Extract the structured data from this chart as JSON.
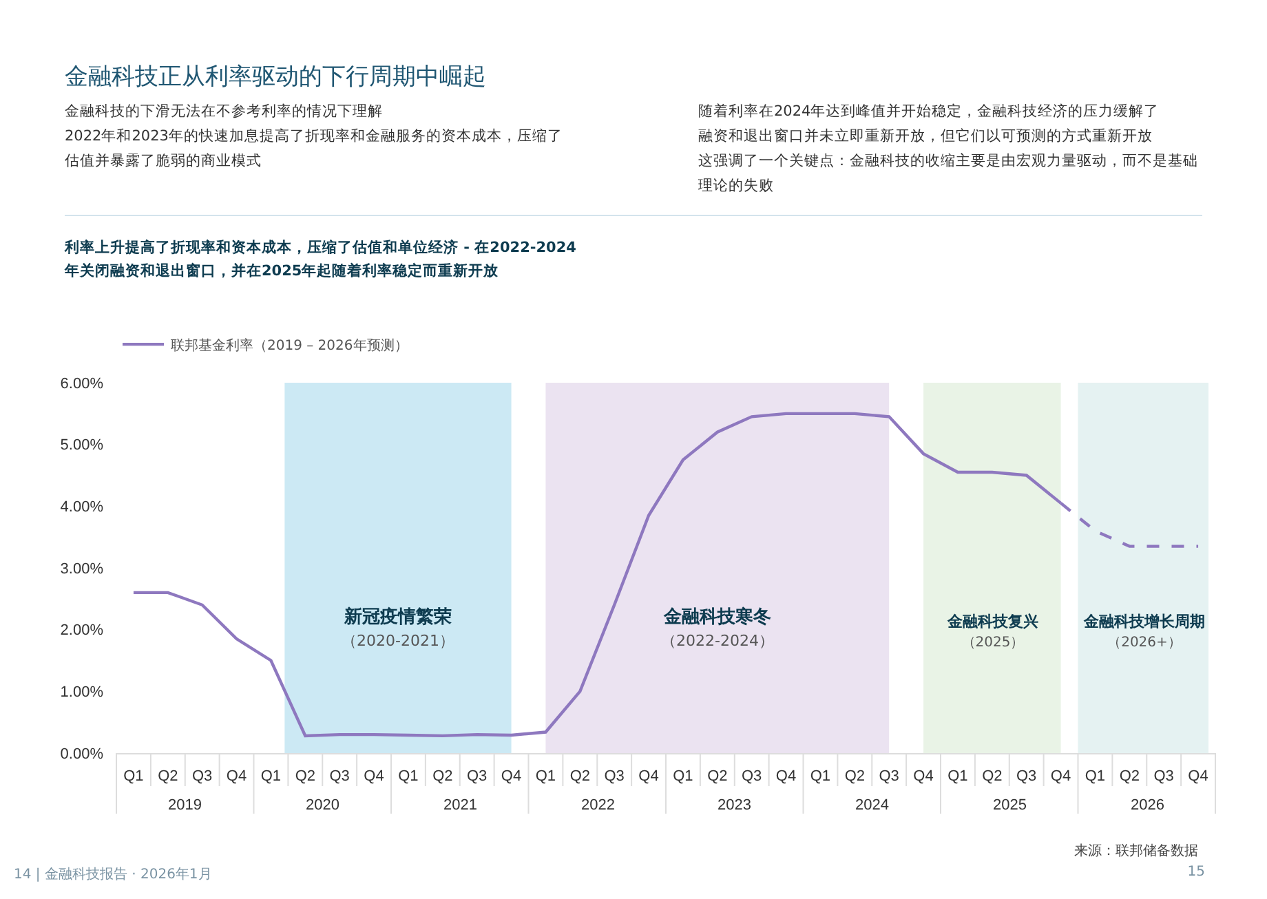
{
  "chart_data": {
    "type": "line",
    "title": "金融科技正从利率驱动的下行周期中崛起",
    "subtitle": "利率上升提高了折现率和资本成本，压缩了估值和单位经济 - 在2022-2024年关闭融资和退出窗口，并在2025年起随着利率稳定而重新开放",
    "annotations": [
      "金融科技的下滑无法在不参考利率的情况下理解",
      "2022年和2023年的快速加息提高了折现率和金融服务的资本成本，压缩了估值并暴露了脆弱的商业模式",
      "随着利率在2024年达到峰值并开始稳定，金融科技经济的压力缓解了",
      "融资和退出窗口并未立即重新开放，但它们以可预测的方式重新开放",
      "这强调了一个关键点：金融科技的收缩主要是由宏观力量驱动，而不是基础理论的失败",
      "来源：联邦储备数据",
      "14 | 金融科技报告 · 2026年1月",
      "15",
      "新冠疫情繁荣（2020-2021）",
      "金融科技寒冬（2022-2024）",
      "金融科技复兴（2025）",
      "金融科技增长周期（2026+）",
      {
        "text": "2019"
      },
      {
        "text": "2020"
      },
      {
        "text": "2021"
      },
      {
        "text": "2022"
      },
      {
        "text": "2023"
      },
      {
        "text": "2024"
      },
      {
        "text": "2025"
      },
      {
        "text": "2026"
      }
    ],
    "categories": [
      "Q1",
      "Q2",
      "Q3",
      "Q4",
      "Q1",
      "Q2",
      "Q3",
      "Q4",
      "Q1",
      "Q2",
      "Q3",
      "Q4",
      "Q1",
      "Q2",
      "Q3",
      "Q4",
      "Q1",
      "Q2",
      "Q3",
      "Q4",
      "Q1",
      "Q2",
      "Q3",
      "Q4",
      "Q1",
      "Q2",
      "Q3",
      "Q4",
      "Q1",
      "Q2",
      "Q3",
      "Q4"
    ],
    "series": [
      {
        "name": "联邦基金利率（2019 – 2026年预测）",
        "line_style": "solid",
        "color": "#8e78bf",
        "values": [
          2.6,
          2.6,
          2.4,
          1.85,
          1.5,
          0.28,
          0.3,
          0.3,
          0.29,
          0.28,
          0.3,
          0.29,
          0.34,
          1.0,
          2.4,
          3.85,
          4.75,
          5.2,
          5.45,
          5.5,
          5.5,
          5.5,
          5.45,
          4.85,
          4.55,
          4.55,
          4.5,
          4.05,
          null,
          null,
          null,
          null
        ]
      },
      {
        "line_style": "dashed",
        "color": "#8e78bf",
        "values": [
          null,
          null,
          null,
          null,
          null,
          null,
          null,
          null,
          null,
          null,
          null,
          null,
          null,
          null,
          null,
          null,
          null,
          null,
          null,
          null,
          null,
          null,
          null,
          null,
          null,
          null,
          null,
          4.05,
          3.6,
          3.35,
          3.35,
          3.35
        ]
      }
    ],
    "ylim": [
      0,
      6
    ],
    "yticks": [
      {
        "value": 0,
        "label": "0.00%"
      },
      {
        "value": 1,
        "label": "1.00%"
      },
      {
        "value": 2,
        "label": "2.00%"
      },
      {
        "value": 3,
        "label": "3.00%"
      },
      {
        "value": 4,
        "label": "4.00%"
      },
      {
        "value": 5,
        "label": "5.00%"
      },
      {
        "value": 6,
        "label": "6.00%"
      }
    ],
    "legend": "top left"
  }
}
